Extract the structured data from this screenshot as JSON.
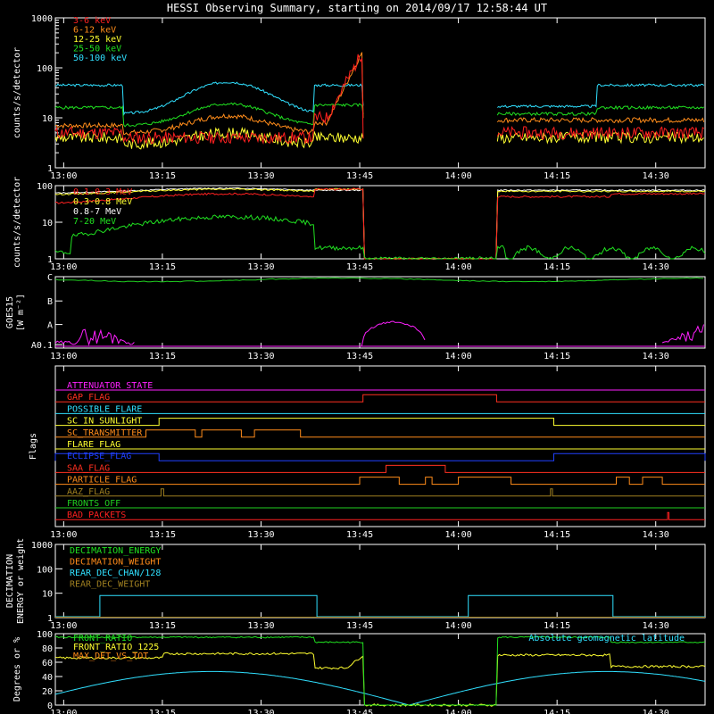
{
  "title": "HESSI Observing Summary, starting on 2014/09/17 12:58:44 UT",
  "time_labels": [
    "13:00",
    "13:15",
    "13:30",
    "13:45",
    "14:00",
    "14:15",
    "14:30"
  ],
  "chart_data": [
    {
      "type": "line",
      "ylabel": "counts/s/detector",
      "yscale": "log",
      "yticks": [
        "1",
        "10",
        "100",
        "1000"
      ],
      "ylim": [
        1,
        1000
      ],
      "legend": [
        {
          "name": "3-6 keV",
          "color": "#ff2020"
        },
        {
          "name": "6-12 keV",
          "color": "#ff8c1a"
        },
        {
          "name": "12-25 keV",
          "color": "#ffff30"
        },
        {
          "name": "25-50 keV",
          "color": "#20e020"
        },
        {
          "name": "50-100 keV",
          "color": "#30e0ff"
        }
      ]
    },
    {
      "type": "line",
      "ylabel": "counts/s/detector",
      "yscale": "log",
      "yticks": [
        "1",
        "10",
        "100"
      ],
      "ylim": [
        1,
        100
      ],
      "legend": [
        {
          "name": "0.1-0.3 MeV",
          "color": "#ff2020"
        },
        {
          "name": "0.3-0.8 MeV",
          "color": "#ffff30"
        },
        {
          "name": "0.8-7 MeV",
          "color": "#ffffff"
        },
        {
          "name": "7-20 MeV",
          "color": "#20e020"
        }
      ]
    },
    {
      "type": "line",
      "ylabel": "GOES15",
      "ylabel2": "[W m⁻²]",
      "yticks": [
        "A0.1",
        "A",
        "B",
        "C"
      ],
      "colors": {
        "long": "#20d020",
        "short": "#ff20ff"
      }
    },
    {
      "type": "line",
      "ylabel": "Flags",
      "flags": [
        {
          "name": "ATTENUATOR_STATE",
          "color": "#ff20ff"
        },
        {
          "name": "GAP_FLAG",
          "color": "#ff3020"
        },
        {
          "name": "POSSIBLE_FLARE",
          "color": "#30e0ff"
        },
        {
          "name": "SC_IN_SUNLIGHT",
          "color": "#ffff30"
        },
        {
          "name": "SC_TRANSMITTER",
          "color": "#ff8c1a"
        },
        {
          "name": "FLARE_FLAG",
          "color": "#ffff30"
        },
        {
          "name": "ECLIPSE_FLAG",
          "color": "#2040ff"
        },
        {
          "name": "SAA_FLAG",
          "color": "#ff3020"
        },
        {
          "name": "PARTICLE_FLAG",
          "color": "#ff8c1a"
        },
        {
          "name": "AAZ_FLAG",
          "color": "#a08020"
        },
        {
          "name": "FRONTS_OFF",
          "color": "#20d020"
        },
        {
          "name": "BAD_PACKETS",
          "color": "#ff2020"
        }
      ]
    },
    {
      "type": "line",
      "ylabel": "DECIMATION",
      "ylabel2": "ENERGY or weight",
      "yscale": "log",
      "yticks": [
        "1",
        "10",
        "100",
        "1000"
      ],
      "ylim": [
        1,
        1000
      ],
      "legend": [
        {
          "name": "DECIMATION_ENERGY",
          "color": "#20e020"
        },
        {
          "name": "DECIMATION_WEIGHT",
          "color": "#ff8c1a"
        },
        {
          "name": "REAR_DEC_CHAN/128",
          "color": "#30e0ff"
        },
        {
          "name": "REAR_DEC_WEIGHT",
          "color": "#a08020"
        }
      ]
    },
    {
      "type": "line",
      "ylabel": "Degrees or %",
      "yticks": [
        "0",
        "20",
        "40",
        "60",
        "80",
        "100"
      ],
      "ylim": [
        0,
        100
      ],
      "legend": [
        {
          "name": "FRONT_RATIO",
          "color": "#20e020"
        },
        {
          "name": "FRONT_RATIO_1225",
          "color": "#ffff30"
        },
        {
          "name": "MAX_DET_VS_TOT",
          "color": "#ff8c1a"
        }
      ],
      "legend_right": {
        "name": "Absolute geomagnetic latitude",
        "color": "#30e0ff"
      }
    }
  ]
}
